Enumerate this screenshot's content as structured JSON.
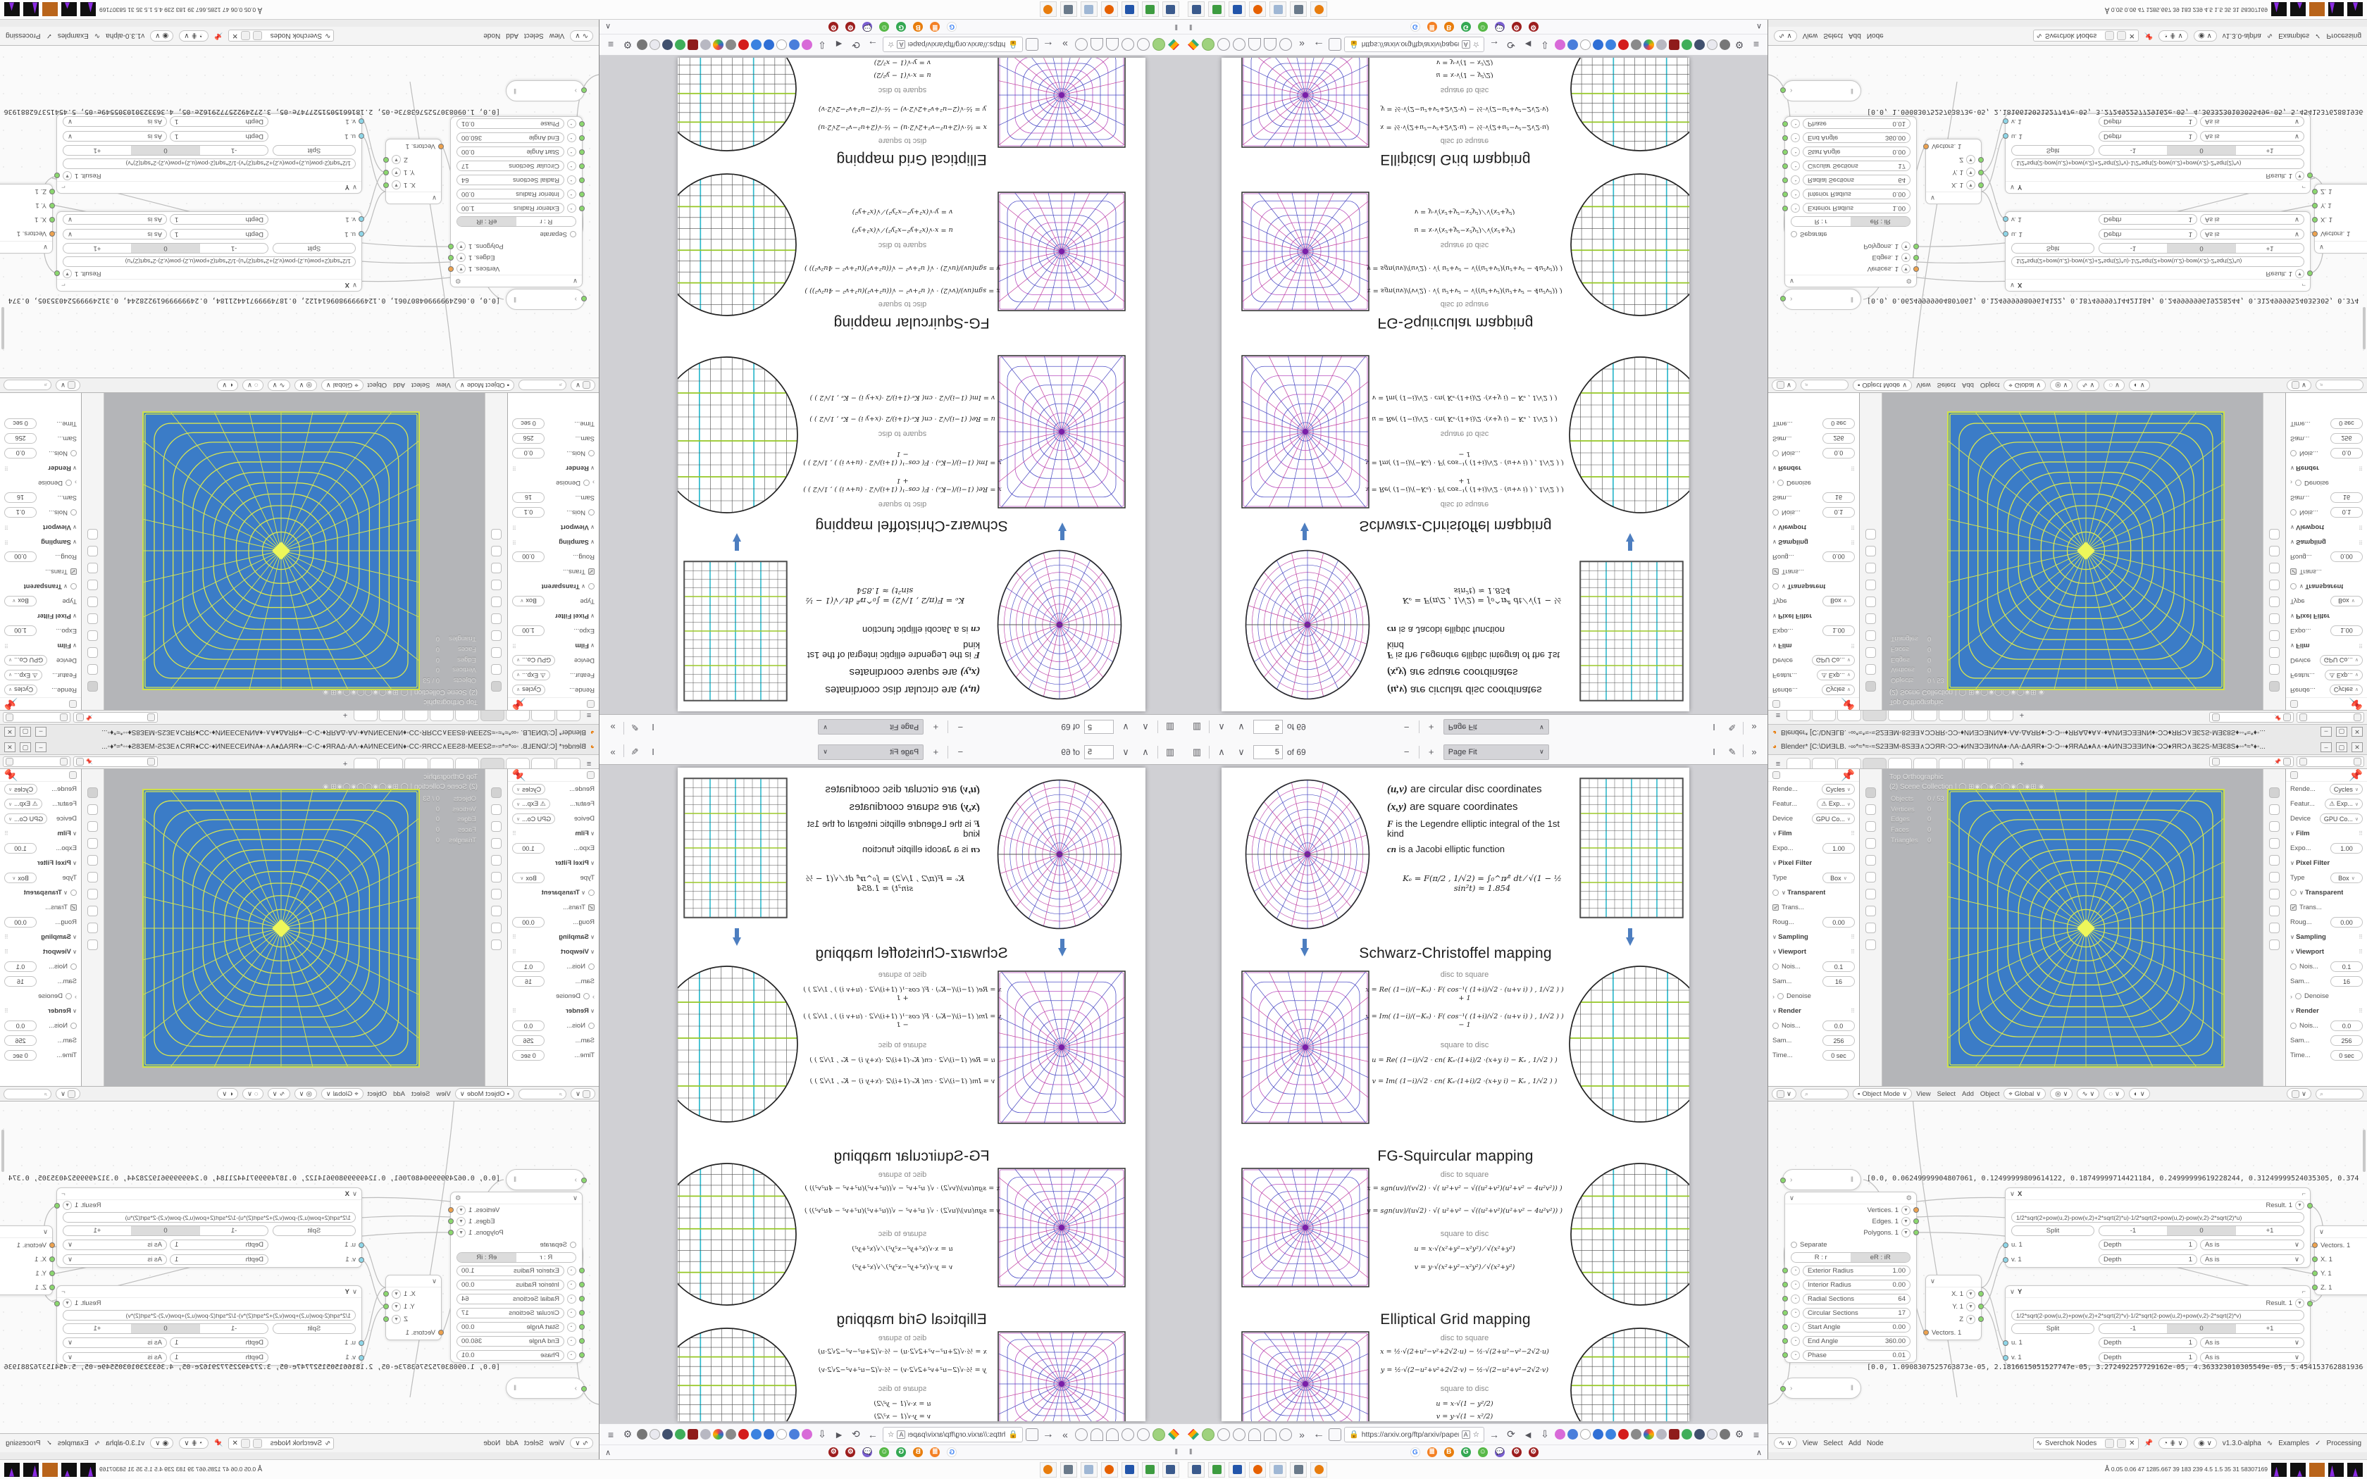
{
  "colors": {
    "pdf-bg": "#d0d0d4",
    "vp-bg": "#b4b5b8",
    "arrow": "#4d7ec0",
    "sock-green": "#8bd86e",
    "sock-orange": "#eda24f",
    "sock-cyan": "#8ed6e8",
    "render-blue": "#3b7cc7",
    "render-grid": "#d8e650"
  },
  "pdf": {
    "toolbar": {
      "page": "5",
      "of": "of 69",
      "fit": "Page Fit"
    },
    "legend": {
      "l1s": "(u,v)",
      "l1": "are circular disc coordinates",
      "l2s": "(x,y)",
      "l2": "are square coordinates",
      "l3s": "F",
      "l3": "is the Legendre elliptic integral of the 1st kind",
      "l4s": "cn",
      "l4": "is a Jacobi elliptic function",
      "ke": "Kₑ = F(π/2 , 1/√2) = ∫₀^π⁄² dt ⁄ √(1 − ½ sin²t)  ≈ 1.854"
    },
    "sections": [
      {
        "title": "Schwarz-Christoffel mapping",
        "a": "disc to square",
        "f1": "x = Re( (1−i)/(−Kₑ) · F( cos⁻¹( (1+i)/√2 · (u+v i) ) , 1/√2 ) ) + 1",
        "f2": "y = Im( (1−i)/(−Kₑ) · F( cos⁻¹( (1+i)/√2 · (u+v i) ) , 1/√2 ) ) − 1",
        "b": "square to disc",
        "f3": "u = Re( (1−i)/√2 · cn( Kₑ·(1+i)/2 ·(x+y i) − Kₑ , 1/√2 ) )",
        "f4": "v = Im( (1−i)/√2 · cn( Kₑ·(1+i)/2 ·(x+y i) − Kₑ , 1/√2 ) )"
      },
      {
        "title": "FG-Squircular mapping",
        "a": "disc to square",
        "f1": "x = sgn(uv)/(v√2) · √( u²+v² − √((u²+v²)(u²+v² − 4u²v²)) )",
        "f2": "y = sgn(uv)/(u√2) · √( u²+v² − √((u²+v²)(u²+v² − 4u²v²)) )",
        "b": "square to disc",
        "f3": "u = x·√(x²+y²−x²y²) ⁄ √(x²+y²)",
        "f4": "v = y·√(x²+y²−x²y²) ⁄ √(x²+y²)"
      },
      {
        "title": "Elliptical Grid mapping",
        "a": "disc to square",
        "f1": "x = ½·√(2+u²−v²+2√2·u) − ½·√(2+u²−v²−2√2·u)",
        "f2": "y = ½·√(2−u²+v²+2√2·v) − ½·√(2−u²+v²−2√2·v)",
        "b": "square to disc",
        "f3": "u = x·√(1 − y²/2)",
        "f4": "v = y·√(1 − x²/2)"
      }
    ],
    "nav": {
      "url": "https://arxiv.org/ftp/arxiv/papers/1709/170"
    }
  },
  "blender": {
    "title": "Blender* [C:\\DИƎLB. ◦∞*≈*≈◦≈S2ƎƎM◦8SƎƎ∧ƆƆЯR◦ƆƆ◦♦ИNƎƆƎИNA♦◦ΛA◦ΔAЯR♦◦Ɔ◦Ɔ◦◦♦ЯRAΔ♦A∧◦♦AИNƎƆƎƎИN♦◦ƆƆ♦ЯRƆ∧ƎƐ2S◦MƎƐ8S♦◦◦*≈*♦◦...",
    "viewport": {
      "proj": "Top Orthographic",
      "coll": "(2) Scene Collection | ◯ ⊞◉◯◉◯◯◉◯◉⊞ ◉",
      "stats": [
        {
          "k": "Objects",
          "v": "0 / 53"
        },
        {
          "k": "Vertices",
          "v": "0"
        },
        {
          "k": "Edges",
          "v": "0"
        },
        {
          "k": "Faces",
          "v": "0"
        },
        {
          "k": "Triangles",
          "v": "0"
        }
      ]
    },
    "vp_header": {
      "mode": "Object Mode",
      "m0": "View",
      "m1": "Select",
      "m2": "Add",
      "m3": "Object",
      "global": "Global"
    },
    "props": {
      "rows": [
        {
          "l": "Rende...",
          "v": "Cycles"
        },
        {
          "l": "Featur...",
          "v": "⚠ Exp..."
        },
        {
          "l": "Device",
          "v": "GPU Co..."
        },
        {
          "l": "Film",
          "v": ""
        },
        {
          "l": "Expo...",
          "v": "1.00"
        },
        {
          "l": "Pixel Filter",
          "v": ""
        },
        {
          "l": "Type",
          "v": "Box"
        },
        {
          "l": "Transparent",
          "v": ""
        },
        {
          "l": "Trans...",
          "v": ""
        },
        {
          "l": "Roug...",
          "v": "0.00"
        },
        {
          "l": "Sampling",
          "v": ""
        },
        {
          "l": "Viewport",
          "v": ""
        },
        {
          "l": "Nois...",
          "v": "0.1"
        },
        {
          "l": "Sam...",
          "v": "16"
        },
        {
          "l": "Denoise",
          "v": ""
        },
        {
          "l": "Render",
          "v": ""
        },
        {
          "l": "Nois...",
          "v": "0.0"
        },
        {
          "l": "Sam...",
          "v": "256"
        },
        {
          "l": "Time...",
          "v": "0 sec"
        }
      ]
    },
    "nodes": {
      "arr_top": "[0.0, 0.06249999904807061, 0.12499999809614122, 0.18749999714421184, 0.24999999619228244, 0.31249999524035305, 0.374",
      "arr_bot": "[0.0, 1.0908307525763873e-05, 2.1816615051527747e-05, 3.272492257729162e-05, 4.363323010305549e-05, 5.454153762881936",
      "ellipse": {
        "out0": "Vertices. 1",
        "out1": "Edges. 1",
        "out2": "Polygons. 1",
        "separate": "Separate",
        "m1": "R : r",
        "m2": "eR : iR",
        "rows": [
          {
            "l": "Exterior Radius",
            "v": "1.00"
          },
          {
            "l": "Interior Radius",
            "v": "0.00"
          },
          {
            "l": "Radial Sections",
            "v": "64"
          },
          {
            "l": "Circular Sections",
            "v": "17"
          },
          {
            "l": "Start Angle",
            "v": "0.00"
          },
          {
            "l": "End Angle",
            "v": "360.00"
          },
          {
            "l": "Phase",
            "v": "0.01"
          }
        ]
      },
      "x": {
        "t": "X",
        "res": "Result. 1",
        "formula": "1/2*sqrt(2+pow(u,2)-pow(v,2)+2*sqrt(2)*u)-1/2*sqrt(2+pow(u,2)-pow(v,2)-2*sqrt(2)*u)",
        "split": "Split",
        "s1": "-1",
        "s2": "0",
        "s3": "+1",
        "u": "u. 1",
        "v": "v. 1",
        "depth": "Depth",
        "one": "1",
        "asis": "As is"
      },
      "y": {
        "t": "Y",
        "res": "Result. 1",
        "formula": "1/2*sqrt(2-pow(u,2)+pow(v,2)+2*sqrt(2)*v)-1/2*sqrt(2-pow(u,2)+pow(v,2)-2*sqrt(2)*v)",
        "split": "Split",
        "s1": "-1",
        "s2": "0",
        "s3": "+1",
        "u": "u. 1",
        "v": "v. 1",
        "depth": "Depth",
        "one": "1",
        "asis": "As is"
      },
      "vout": {
        "x": "X. 1",
        "y": "Y. 1",
        "z": "Z",
        "vec": "Vectors. 1"
      },
      "vin": {
        "vec": "Vectors. 1",
        "x": "X. 1",
        "y": "Y. 1",
        "z": "Z. 1"
      }
    },
    "node_header": {
      "m0": "View",
      "m1": "Select",
      "m2": "Add",
      "m3": "Node",
      "search": "Sverchok Nodes",
      "ver": "v1.3.0-alpha",
      "examples": "Examples",
      "processing": "Processing"
    }
  },
  "taskbar": {
    "stats": "0.05 0.06  47  1285.667  39  183  239  4.5  1.5  35  31  58307169"
  },
  "icons": {
    "hamburger": "≡",
    "back": "←",
    "fwd": "→",
    "reload": "⟳",
    "star": "☆",
    "down": "⇩",
    "chevL": "«",
    "chevR": "»",
    "up": "∧",
    "dn": "∨",
    "minus": "−",
    "plus": "+",
    "text": "I",
    "pen": "✎",
    "pause": "‖",
    "sidebar": "▥",
    "translate": "A",
    "gear": "⚙",
    "check": "✓",
    "speaker": "◄"
  }
}
